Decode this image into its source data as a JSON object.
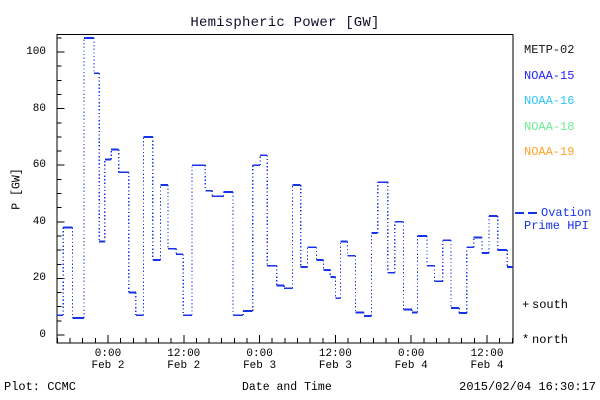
{
  "title": "Hemispheric Power [GW]",
  "y_axis": {
    "label": "P [GW]"
  },
  "x_axis": {
    "label": "Date and Time"
  },
  "footer": {
    "credit": "Plot: CCMC",
    "timestamp": "2015/02/04 16:30:17"
  },
  "legend": {
    "satellites": [
      {
        "label": "METP-02",
        "color": "#141414"
      },
      {
        "label": "NOAA-15",
        "color": "#2424ff"
      },
      {
        "label": "NOAA-16",
        "color": "#2fc6f7"
      },
      {
        "label": "NOAA-18",
        "color": "#6aee92"
      },
      {
        "label": "NOAA-19",
        "color": "#ffa226"
      }
    ],
    "model": {
      "line1": "Ovation",
      "line2": "Prime HPI",
      "color": "#1733e6"
    },
    "markers": [
      {
        "symbol": "+",
        "label": "south"
      },
      {
        "symbol": "*",
        "label": "north"
      }
    ]
  },
  "chart_data": {
    "type": "step",
    "title": "Hemispheric Power [GW]",
    "xlabel": "Date and Time",
    "ylabel": "P [GW]",
    "x_unit": "hours since 2015-02-02 00:00 UT",
    "xlim_hours": [
      -8.1,
      64.3
    ],
    "ylim": [
      -3,
      106
    ],
    "grid": false,
    "y_ticks": [
      0,
      20,
      40,
      60,
      80,
      100
    ],
    "y_minor_step": 5,
    "x_minor_step_hours": 2,
    "x_ticks": [
      {
        "t": 0,
        "time": "0:00",
        "date": "Feb 2"
      },
      {
        "t": 12,
        "time": "12:00",
        "date": "Feb 2"
      },
      {
        "t": 24,
        "time": "0:00",
        "date": "Feb 3"
      },
      {
        "t": 36,
        "time": "12:00",
        "date": "Feb 3"
      },
      {
        "t": 48,
        "time": "0:00",
        "date": "Feb 4"
      },
      {
        "t": 60,
        "time": "12:00",
        "date": "Feb 4"
      }
    ],
    "series": [
      {
        "name": "NOAA-15",
        "color": "#1733e6",
        "style": "solid horizontal dash per satellite pass, dotted vertical connectors",
        "points": [
          [
            -8.1,
            7
          ],
          [
            -7.1,
            38
          ],
          [
            -5.6,
            6
          ],
          [
            -3.8,
            105
          ],
          [
            -2.2,
            92.5
          ],
          [
            -1.4,
            33
          ],
          [
            -0.5,
            62
          ],
          [
            0.5,
            65.5
          ],
          [
            1.7,
            57.5
          ],
          [
            3.3,
            15
          ],
          [
            4.4,
            7
          ],
          [
            5.6,
            70
          ],
          [
            7.1,
            26.5
          ],
          [
            8.3,
            53
          ],
          [
            9.5,
            30.5
          ],
          [
            10.8,
            28.5
          ],
          [
            11.9,
            7
          ],
          [
            13.3,
            60
          ],
          [
            15.4,
            51
          ],
          [
            16.5,
            49
          ],
          [
            18.3,
            50.5
          ],
          [
            19.8,
            7
          ],
          [
            21.4,
            8.5
          ],
          [
            22.9,
            60
          ],
          [
            24.1,
            63.5
          ],
          [
            25.2,
            24.5
          ],
          [
            26.7,
            17.5
          ],
          [
            27.9,
            16.5
          ],
          [
            29.2,
            53
          ],
          [
            30.5,
            24
          ],
          [
            31.6,
            31
          ],
          [
            33.0,
            26.5
          ],
          [
            34.1,
            23
          ],
          [
            35.2,
            20.5
          ],
          [
            36.0,
            13
          ],
          [
            36.8,
            33
          ],
          [
            37.9,
            28
          ],
          [
            39.2,
            8
          ],
          [
            40.5,
            6.7
          ],
          [
            41.7,
            36
          ],
          [
            42.7,
            54
          ],
          [
            44.3,
            22
          ],
          [
            45.4,
            40
          ],
          [
            46.8,
            9
          ],
          [
            48.1,
            8
          ],
          [
            49.0,
            35
          ],
          [
            50.5,
            24.5
          ],
          [
            51.7,
            19
          ],
          [
            53.0,
            33.5
          ],
          [
            54.3,
            9.5
          ],
          [
            55.6,
            7.8
          ],
          [
            56.8,
            31
          ],
          [
            57.9,
            34.5
          ],
          [
            59.2,
            29
          ],
          [
            60.3,
            42
          ],
          [
            61.7,
            30
          ],
          [
            63.2,
            24
          ]
        ]
      }
    ]
  }
}
